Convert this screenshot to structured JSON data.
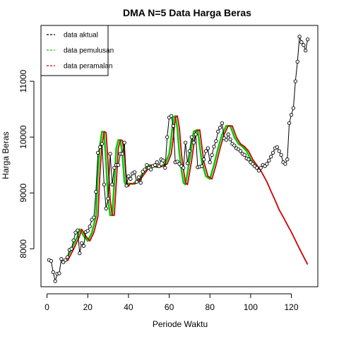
{
  "chart_data": {
    "type": "line",
    "title": "DMA N=5 Data Harga Beras",
    "xlabel": "Periode Waktu",
    "ylabel": "Harga Beras",
    "xlim": [
      -3,
      133
    ],
    "ylim": [
      7320,
      12000
    ],
    "x_ticks": [
      0,
      20,
      40,
      60,
      80,
      100,
      120
    ],
    "y_ticks": [
      8000,
      9000,
      10000,
      11000
    ],
    "legend": {
      "placement": "top-left",
      "entries": [
        {
          "name": "data aktual",
          "color": "#000000"
        },
        {
          "name": "data pemulusan",
          "color": "#00cc00"
        },
        {
          "name": "data peramalan",
          "color": "#cc0000"
        }
      ]
    },
    "series": [
      {
        "name": "data aktual",
        "color": "#000000",
        "style": "line+points",
        "x": [
          1,
          2,
          3,
          4,
          5,
          6,
          7,
          8,
          9,
          10,
          11,
          12,
          13,
          14,
          15,
          16,
          17,
          18,
          19,
          20,
          21,
          22,
          23,
          24,
          25,
          26,
          27,
          28,
          29,
          30,
          31,
          32,
          33,
          34,
          35,
          36,
          37,
          38,
          39,
          40,
          41,
          42,
          43,
          44,
          45,
          46,
          47,
          48,
          49,
          50,
          51,
          52,
          53,
          54,
          55,
          56,
          57,
          58,
          59,
          60,
          61,
          62,
          63,
          64,
          65,
          66,
          67,
          68,
          69,
          70,
          71,
          72,
          73,
          74,
          75,
          76,
          77,
          78,
          79,
          80,
          81,
          82,
          83,
          84,
          85,
          86,
          87,
          88,
          89,
          90,
          91,
          92,
          93,
          94,
          95,
          96,
          97,
          98,
          99,
          100,
          101,
          102,
          103,
          104,
          105,
          106,
          107,
          108,
          109,
          110,
          111,
          112,
          113,
          114,
          115,
          116,
          117,
          118,
          119,
          120,
          121,
          122,
          123,
          124,
          125,
          126,
          127,
          128
        ],
        "y": [
          7800,
          7780,
          7580,
          7420,
          7550,
          7560,
          7820,
          7760,
          7800,
          7850,
          7980,
          8000,
          8150,
          8290,
          8330,
          7920,
          8100,
          8050,
          8300,
          8320,
          8400,
          8520,
          8560,
          9020,
          9720,
          9820,
          9880,
          9150,
          8720,
          8900,
          9700,
          9150,
          9450,
          9500,
          9500,
          9700,
          9700,
          9900,
          9130,
          9300,
          9250,
          9350,
          9370,
          9200,
          9280,
          9180,
          9380,
          9420,
          9500,
          9450,
          9420,
          9480,
          9500,
          9550,
          9480,
          9600,
          9580,
          9450,
          10000,
          10350,
          10380,
          10200,
          9550,
          9560,
          9520,
          9480,
          9450,
          9900,
          9530,
          9750,
          10000,
          9900,
          10050,
          9460,
          9470,
          9480,
          9600,
          9750,
          9800,
          9550,
          9680,
          9830,
          9930,
          10100,
          10170,
          10250,
          9980,
          9950,
          10050,
          9960,
          9880,
          9850,
          9800,
          9780,
          9750,
          9700,
          9680,
          9620,
          9600,
          9550,
          9520,
          9480,
          9450,
          9400,
          9450,
          9500,
          9480,
          9520,
          9580,
          9650,
          9720,
          9800,
          9820,
          9750,
          9680,
          9550,
          9520,
          9600,
          10250,
          10400,
          10520,
          11000,
          11350,
          11800,
          11700,
          11650,
          11550,
          11750
        ]
      },
      {
        "name": "data pemulusan",
        "color": "#00cc00",
        "style": "line",
        "x": [
          9,
          12,
          15,
          16,
          18,
          20,
          22,
          24,
          25,
          26,
          27,
          28,
          29,
          30,
          31,
          32,
          33,
          34,
          35,
          36,
          37,
          38,
          39,
          40,
          42,
          44,
          46,
          48,
          50,
          52,
          54,
          56,
          58,
          60,
          61,
          62,
          63,
          64,
          65,
          66,
          67,
          68,
          70,
          72,
          74,
          76,
          78,
          80,
          82,
          84,
          86,
          88,
          90,
          92,
          94,
          96,
          98,
          100,
          102,
          104
        ],
        "y": [
          7780,
          7990,
          8230,
          8350,
          8230,
          8140,
          8290,
          8580,
          9380,
          9860,
          10100,
          10080,
          9540,
          8880,
          8600,
          8600,
          9170,
          9800,
          9950,
          9940,
          9690,
          9200,
          9120,
          9170,
          9160,
          9210,
          9300,
          9400,
          9500,
          9480,
          9460,
          9480,
          9520,
          9700,
          10000,
          10350,
          10380,
          10160,
          9700,
          9420,
          9180,
          9150,
          9580,
          10100,
          10130,
          9560,
          9300,
          9250,
          9500,
          9800,
          10050,
          10200,
          10200,
          10000,
          9880,
          9830,
          9750,
          9600,
          9500,
          9400
        ]
      },
      {
        "name": "data peramalan",
        "color": "#cc0000",
        "style": "line",
        "x": [
          10,
          13,
          16,
          17,
          19,
          21,
          23,
          25,
          26,
          27,
          28,
          29,
          30,
          31,
          32,
          33,
          34,
          35,
          36,
          37,
          38,
          39,
          40,
          41,
          43,
          45,
          47,
          49,
          51,
          53,
          55,
          57,
          59,
          61,
          62,
          63,
          64,
          65,
          66,
          67,
          68,
          69,
          71,
          73,
          75,
          77,
          79,
          81,
          83,
          85,
          87,
          89,
          91,
          93,
          95,
          97,
          99,
          101,
          103,
          105,
          108,
          110,
          112,
          114,
          116,
          118,
          120,
          122,
          124,
          126,
          128
        ],
        "y": [
          7780,
          7990,
          8230,
          8350,
          8230,
          8140,
          8290,
          8580,
          9380,
          9860,
          10100,
          10080,
          9540,
          8880,
          8600,
          8600,
          9170,
          9800,
          9950,
          9940,
          9690,
          9200,
          9120,
          9170,
          9160,
          9210,
          9300,
          9400,
          9500,
          9480,
          9460,
          9480,
          9520,
          9700,
          10000,
          10350,
          10380,
          10160,
          9700,
          9420,
          9180,
          9150,
          9580,
          10100,
          10130,
          9560,
          9300,
          9250,
          9500,
          9800,
          10050,
          10200,
          10200,
          10000,
          9880,
          9830,
          9750,
          9600,
          9500,
          9400,
          9200,
          9030,
          8870,
          8700,
          8570,
          8430,
          8300,
          8150,
          8000,
          7860,
          7720
        ]
      }
    ]
  }
}
